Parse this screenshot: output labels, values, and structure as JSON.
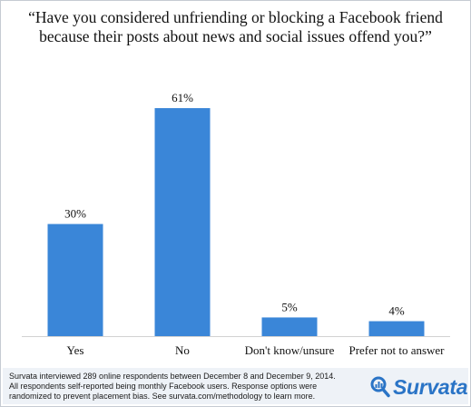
{
  "chart_data": {
    "type": "bar",
    "title": "“Have you considered unfriending or blocking a Facebook friend because their posts about news and social issues offend you?”",
    "categories": [
      "Yes",
      "No",
      "Don't know/unsure",
      "Prefer not to answer"
    ],
    "values": [
      30,
      61,
      5,
      4
    ],
    "value_labels": [
      "30%",
      "61%",
      "5%",
      "4%"
    ],
    "ylim": [
      0,
      70
    ],
    "grid": false,
    "bar_color": "#3a86d8"
  },
  "footer": {
    "lines": [
      "Survata interviewed 289 online respondents between December 8 and December 9, 2014.",
      "All respondents self-reported being monthly Facebook users.  Response options were",
      "randomized to prevent placement bias. See survata.com/methodology to learn more."
    ],
    "logo_text": "Survata",
    "logo_icon": "magnifier-chart-icon",
    "brand_color": "#2a74c6"
  }
}
